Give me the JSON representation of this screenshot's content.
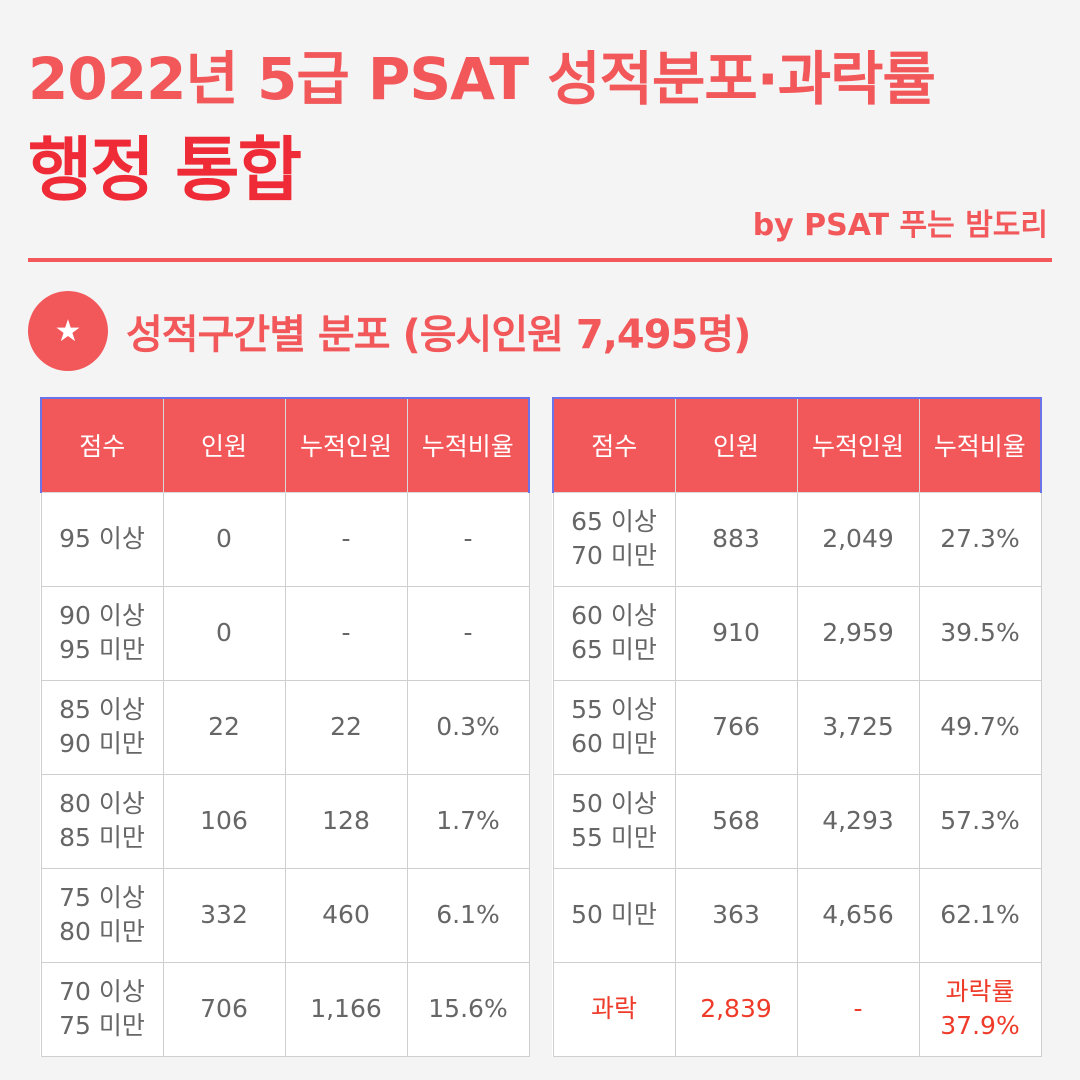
{
  "header": {
    "title_line1": "2022년 5급 PSAT 성적분포·과락률",
    "title_line2": "행정 통합",
    "byline": "by PSAT 푸는 밤도리"
  },
  "section": {
    "icon": "star-icon",
    "icon_glyph": "★",
    "title": "성적구간별 분포 (응시인원 7,495명)"
  },
  "colors": {
    "accent": "#f2575a",
    "title_strong": "#ee2b36",
    "highlight_text": "#ee3b2a"
  },
  "table": {
    "headers": [
      "점수",
      "인원",
      "누적인원",
      "누적비율"
    ],
    "left_rows": [
      {
        "score": "95 이상",
        "count": "0",
        "cumulative": "-",
        "ratio": "-"
      },
      {
        "score": "90 이상\n95 미만",
        "count": "0",
        "cumulative": "-",
        "ratio": "-"
      },
      {
        "score": "85 이상\n90 미만",
        "count": "22",
        "cumulative": "22",
        "ratio": "0.3%"
      },
      {
        "score": "80 이상\n85 미만",
        "count": "106",
        "cumulative": "128",
        "ratio": "1.7%"
      },
      {
        "score": "75 이상\n80 미만",
        "count": "332",
        "cumulative": "460",
        "ratio": "6.1%"
      },
      {
        "score": "70 이상\n75 미만",
        "count": "706",
        "cumulative": "1,166",
        "ratio": "15.6%"
      }
    ],
    "right_rows": [
      {
        "score": "65 이상\n70 미만",
        "count": "883",
        "cumulative": "2,049",
        "ratio": "27.3%"
      },
      {
        "score": "60 이상\n65 미만",
        "count": "910",
        "cumulative": "2,959",
        "ratio": "39.5%"
      },
      {
        "score": "55 이상\n60 미만",
        "count": "766",
        "cumulative": "3,725",
        "ratio": "49.7%"
      },
      {
        "score": "50 이상\n55 미만",
        "count": "568",
        "cumulative": "4,293",
        "ratio": "57.3%"
      },
      {
        "score": "50 미만",
        "count": "363",
        "cumulative": "4,656",
        "ratio": "62.1%"
      }
    ],
    "fail_row": {
      "score": "과락",
      "count": "2,839",
      "cumulative": "-",
      "ratio": "과락률\n37.9%"
    }
  }
}
